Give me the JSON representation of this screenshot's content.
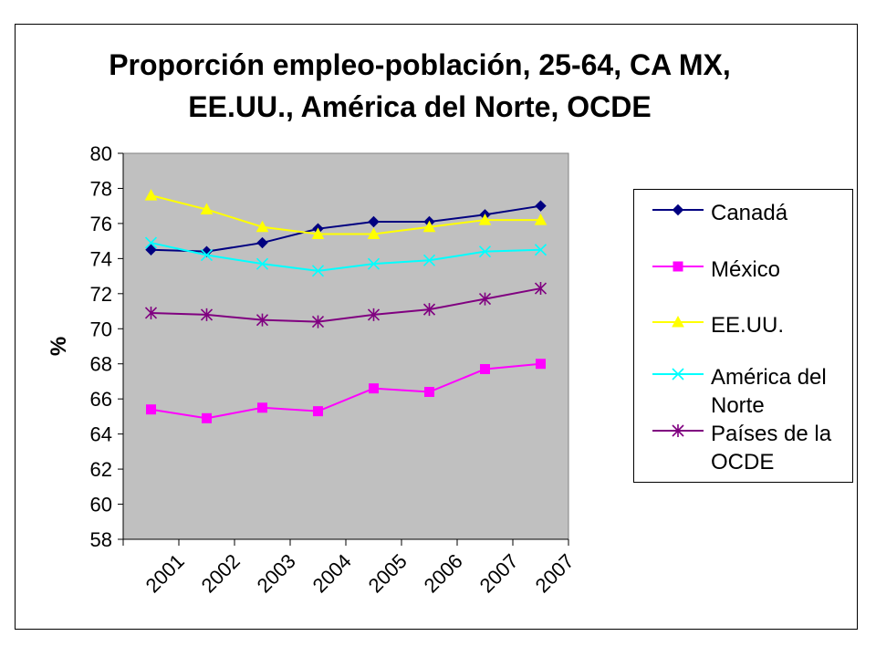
{
  "chart_data": {
    "type": "line",
    "title_lines": [
      "Proporción empleo-población, 25-64, CA MX,",
      "EE.UU., América del Norte, OCDE"
    ],
    "xlabel": "",
    "ylabel": "%",
    "categories": [
      "2001",
      "2002",
      "2003",
      "2004",
      "2005",
      "2006",
      "2007",
      "2007"
    ],
    "ylim": [
      58,
      80
    ],
    "yticks": [
      58,
      60,
      62,
      64,
      66,
      68,
      70,
      72,
      74,
      76,
      78,
      80
    ],
    "grid": false,
    "legend_position": "right",
    "plot_background": "#c0c0c0",
    "series": [
      {
        "name": "Canadá",
        "color": "#000080",
        "marker": "diamond",
        "values": [
          74.5,
          74.4,
          74.9,
          75.7,
          76.1,
          76.1,
          76.5,
          77.0
        ]
      },
      {
        "name": "México",
        "color": "#ff00ff",
        "marker": "square",
        "values": [
          65.4,
          64.9,
          65.5,
          65.3,
          66.6,
          66.4,
          67.7,
          68.0
        ]
      },
      {
        "name": "EE.UU.",
        "color": "#ffff00",
        "marker": "triangle",
        "values": [
          77.6,
          76.8,
          75.8,
          75.4,
          75.4,
          75.8,
          76.2,
          76.2
        ]
      },
      {
        "name": "América del Norte",
        "color": "#00ffff",
        "marker": "x",
        "values": [
          74.9,
          74.2,
          73.7,
          73.3,
          73.7,
          73.9,
          74.4,
          74.5
        ]
      },
      {
        "name": "Países de la OCDE",
        "color": "#800080",
        "marker": "star",
        "values": [
          70.9,
          70.8,
          70.5,
          70.4,
          70.8,
          71.1,
          71.7,
          72.3
        ]
      }
    ]
  },
  "legend_labels": [
    [
      "Canadá"
    ],
    [
      "México"
    ],
    [
      "EE.UU."
    ],
    [
      "América del",
      "Norte"
    ],
    [
      "Países de la",
      "OCDE"
    ]
  ]
}
